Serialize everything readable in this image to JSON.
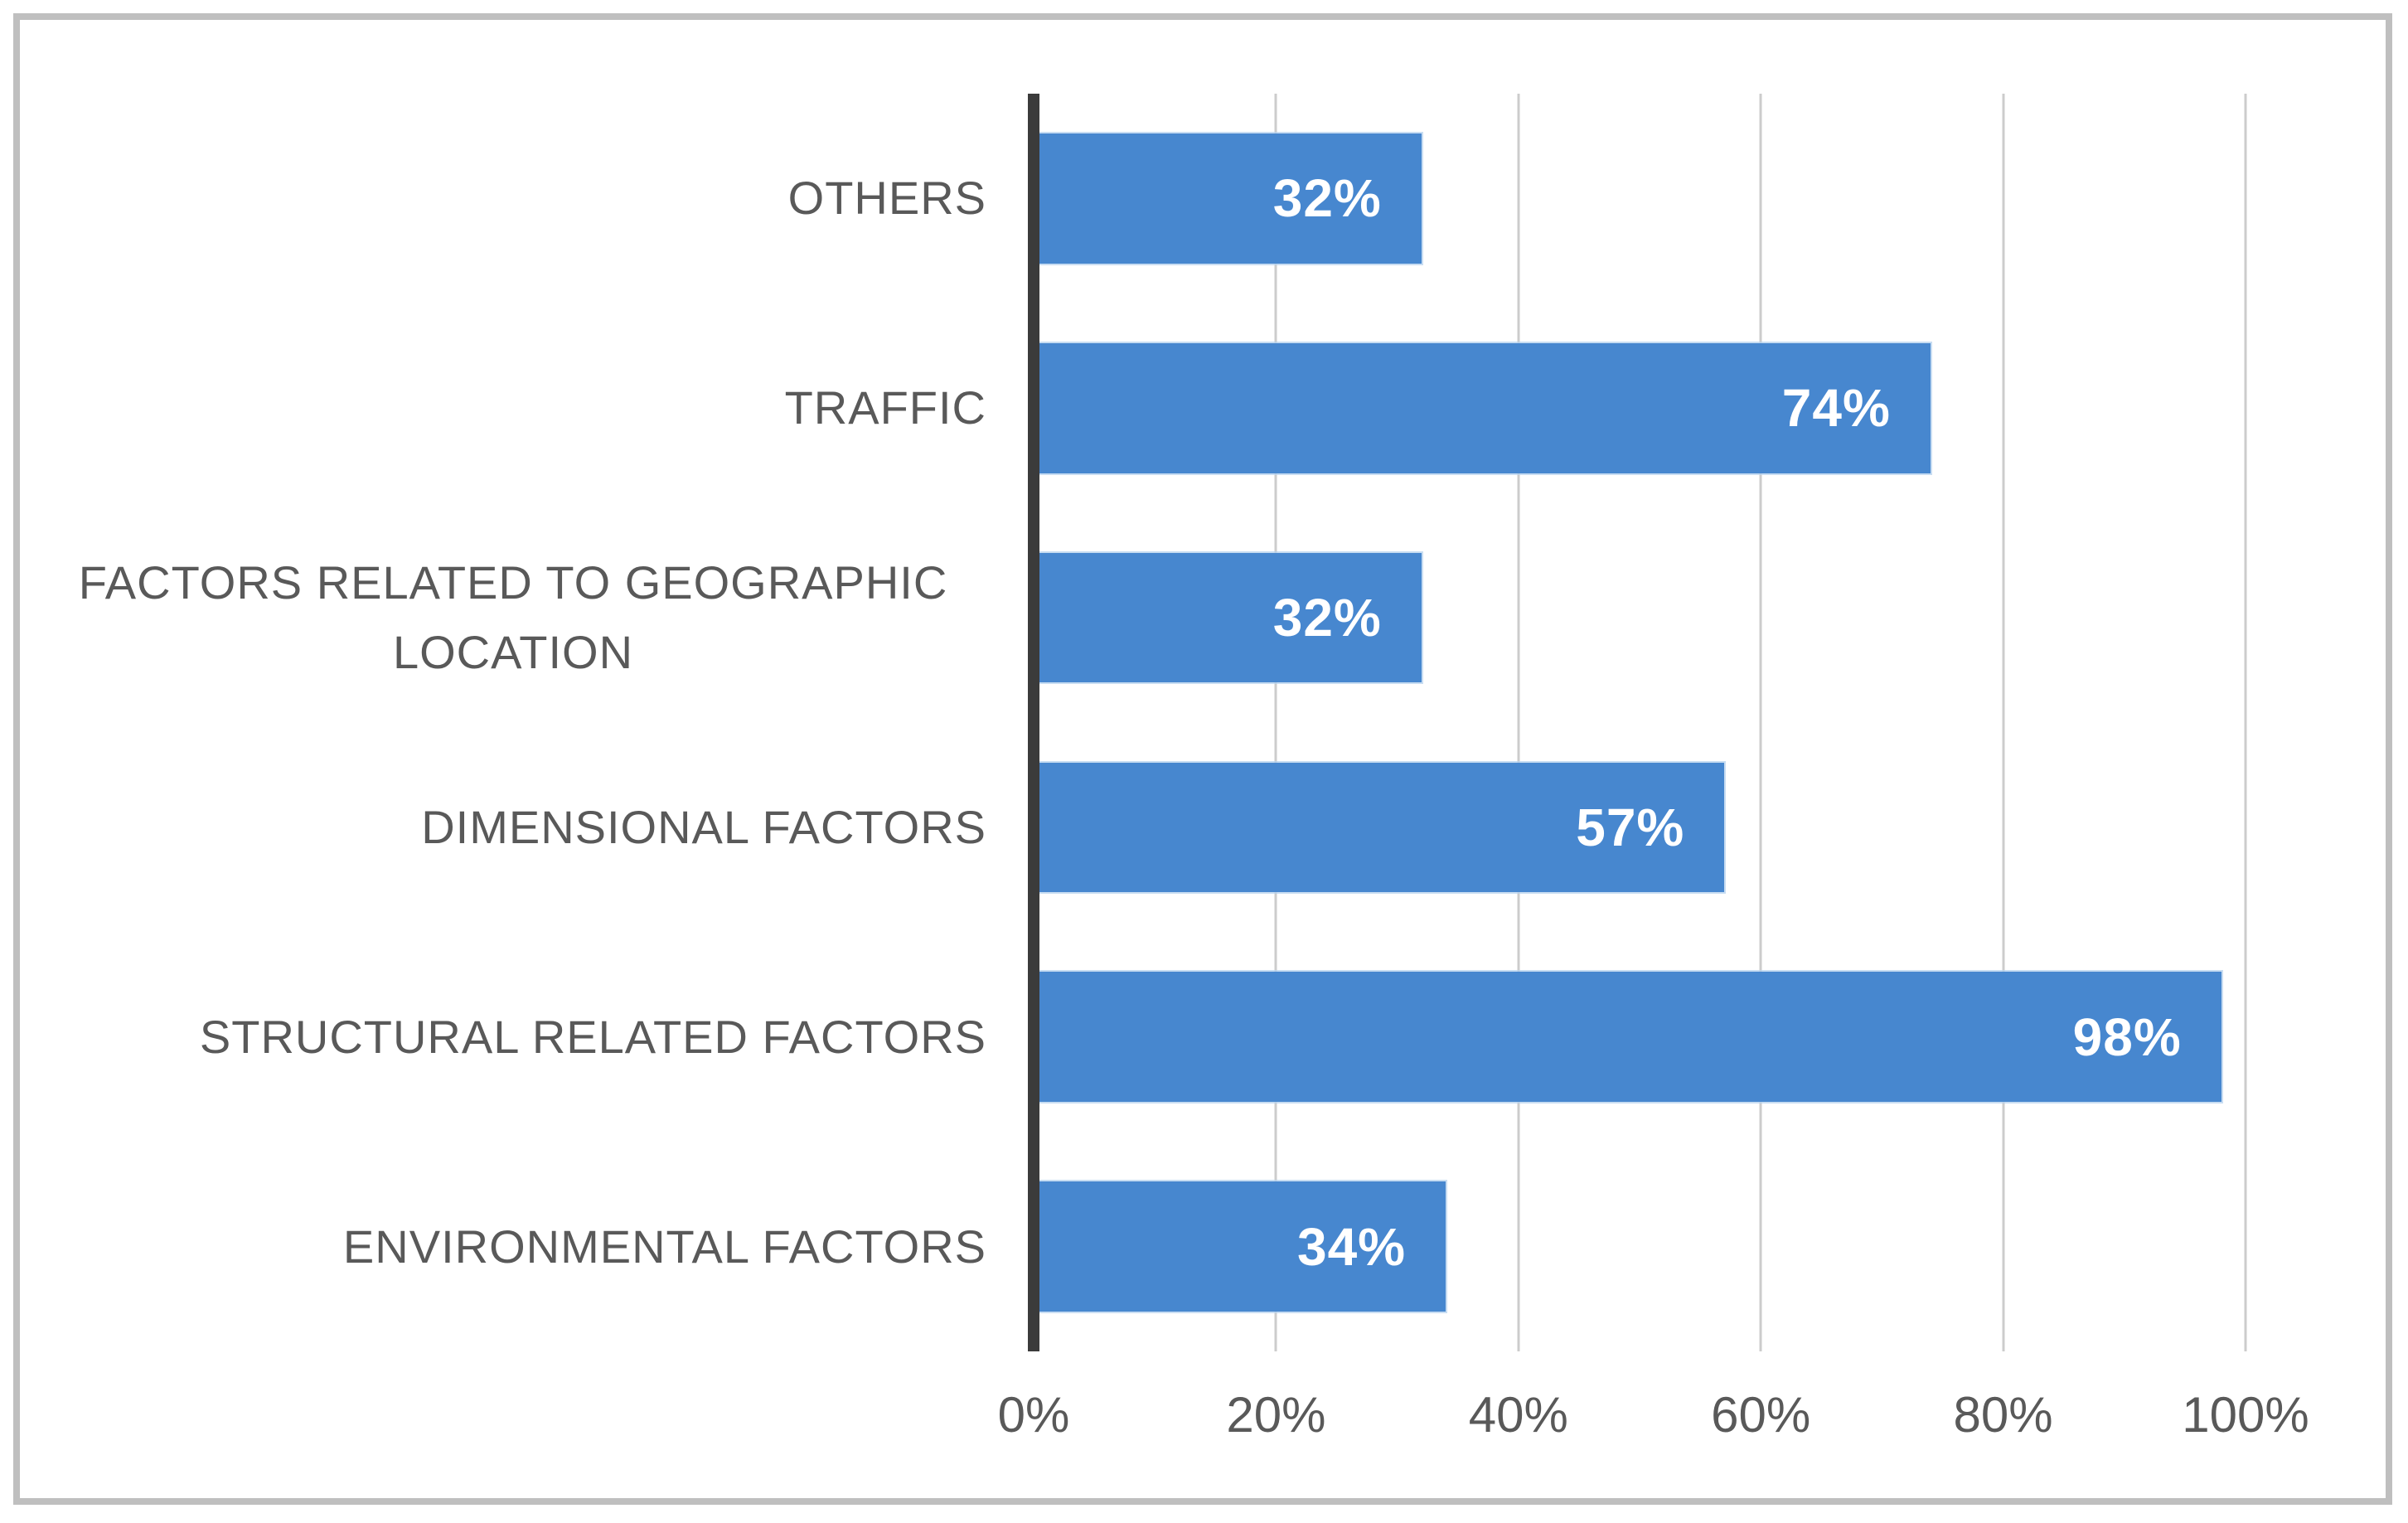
{
  "chart_data": {
    "type": "bar",
    "orientation": "horizontal",
    "title": "",
    "xlabel": "",
    "ylabel": "",
    "categories": [
      "OTHERS",
      "TRAFFIC",
      "FACTORS RELATED TO GEOGRAPHIC LOCATION",
      "DIMENSIONAL FACTORS",
      "STRUCTURAL RELATED FACTORS",
      "ENVIRONMENTAL FACTORS"
    ],
    "values": [
      32,
      74,
      32,
      57,
      98,
      34
    ],
    "value_labels": [
      "32%",
      "74%",
      "32%",
      "57%",
      "98%",
      "34%"
    ],
    "x_ticks": [
      "0%",
      "20%",
      "40%",
      "60%",
      "80%",
      "100%"
    ],
    "x_tick_values": [
      0,
      20,
      40,
      60,
      80,
      100
    ],
    "xlim": [
      0,
      100
    ],
    "grid": true,
    "legend": "none",
    "data_label_position": "inside-end",
    "colors": {
      "bar": "#4787cf",
      "bar_label": "#ffffff",
      "category_text": "#595959",
      "tick_text": "#595959",
      "gridline": "#cccccc",
      "axis_line": "#3b3b3b",
      "frame_border": "#bfbfbf",
      "background": "#ffffff"
    }
  }
}
